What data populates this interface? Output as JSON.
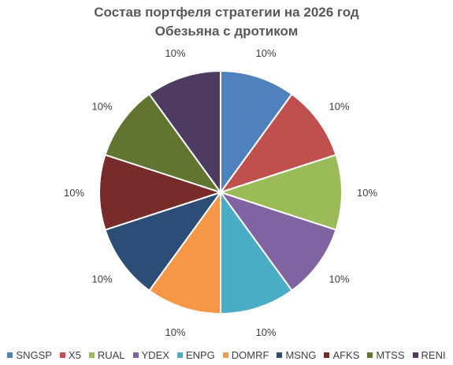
{
  "chart_data": {
    "type": "pie",
    "title": "Состав портфеля стратегии на 2026 год",
    "subtitle": "Обезьяна с дротиком",
    "categories": [
      "SNGSP",
      "X5",
      "RUAL",
      "YDEX",
      "ENPG",
      "DOMRF",
      "MSNG",
      "AFKS",
      "MTSS",
      "RENI"
    ],
    "values": [
      10,
      10,
      10,
      10,
      10,
      10,
      10,
      10,
      10,
      10
    ],
    "data_labels": [
      "10%",
      "10%",
      "10%",
      "10%",
      "10%",
      "10%",
      "10%",
      "10%",
      "10%",
      "10%"
    ],
    "colors": [
      "#4F81BD",
      "#C0504D",
      "#9BBB59",
      "#8064A2",
      "#4BACC6",
      "#F79646",
      "#2C4D75",
      "#772C2A",
      "#5F7530",
      "#4D3B62"
    ],
    "legend_position": "bottom"
  }
}
